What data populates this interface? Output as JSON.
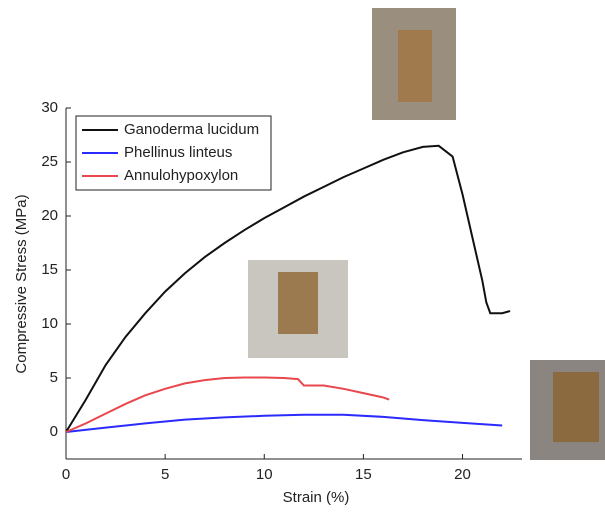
{
  "chart_data": {
    "type": "line",
    "xlabel": "Strain (%)",
    "ylabel": "Compressive Stress (MPa)",
    "xlim": [
      0,
      23
    ],
    "ylim": [
      -2.5,
      30
    ],
    "xticks": [
      0,
      5,
      10,
      15,
      20
    ],
    "yticks": [
      0,
      5,
      10,
      15,
      20,
      25,
      30
    ],
    "legend": "upper left",
    "series": [
      {
        "name": "Ganoderma lucidum",
        "color": "#111111",
        "x": [
          0,
          1,
          2,
          3,
          4,
          5,
          6,
          7,
          8,
          9,
          10,
          11,
          12,
          13,
          14,
          15,
          16,
          17,
          18,
          18.8,
          19.5,
          20,
          20.5,
          21,
          21.2,
          21.4,
          22,
          22.4
        ],
        "values": [
          0,
          3,
          6.2,
          8.8,
          11,
          13,
          14.7,
          16.2,
          17.5,
          18.7,
          19.8,
          20.8,
          21.8,
          22.7,
          23.6,
          24.4,
          25.2,
          25.9,
          26.4,
          26.5,
          25.5,
          22,
          18,
          14,
          12,
          11,
          11,
          11.2
        ]
      },
      {
        "name": "Phellinus linteus",
        "color": "#2b2bff",
        "x": [
          0,
          2,
          4,
          6,
          8,
          10,
          12,
          14,
          16,
          18,
          20,
          22
        ],
        "values": [
          0,
          0.4,
          0.8,
          1.15,
          1.35,
          1.5,
          1.6,
          1.6,
          1.4,
          1.1,
          0.85,
          0.6
        ]
      },
      {
        "name": "Annulohypoxylon",
        "color": "#e8474c",
        "x": [
          0,
          1,
          2,
          3,
          4,
          5,
          6,
          7,
          8,
          9,
          10,
          11,
          11.7,
          12,
          13,
          14,
          15,
          16,
          16.3
        ],
        "values": [
          0,
          0.8,
          1.7,
          2.6,
          3.4,
          4,
          4.5,
          4.8,
          5,
          5.05,
          5.05,
          5,
          4.9,
          4.3,
          4.3,
          4,
          3.6,
          3.2,
          3.0
        ]
      }
    ]
  }
}
